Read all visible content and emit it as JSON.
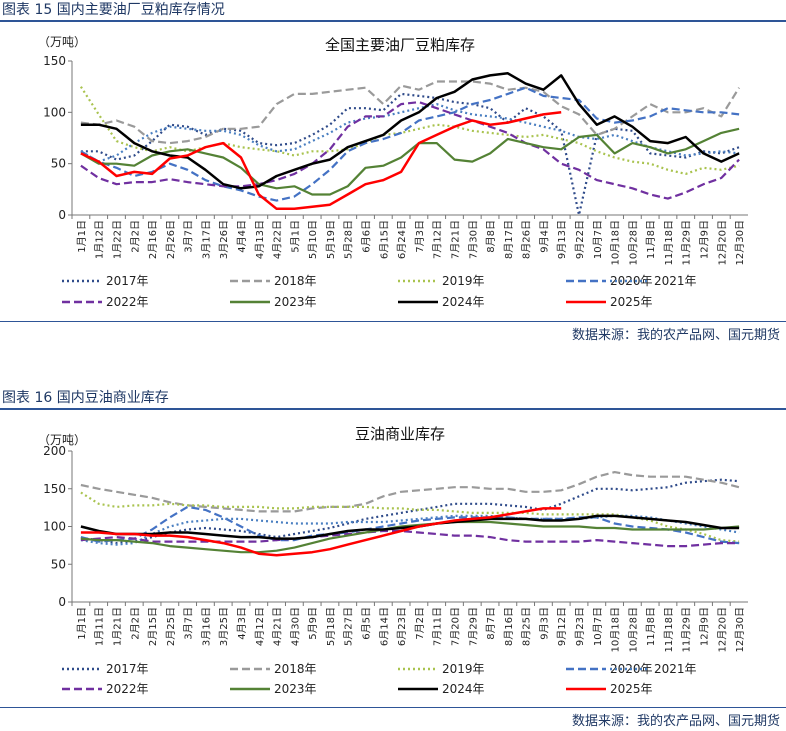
{
  "figures": [
    {
      "caption": "图表 15 国内主要油厂豆粕库存情况",
      "source": "数据来源：我的农产品网、国元期货"
    },
    {
      "caption": "图表 16 国内豆油商业库存",
      "source": "数据来源：我的农产品网、国元期货"
    }
  ],
  "series_styles": [
    {
      "name": "2017年",
      "color": "#2f4b8a",
      "dash": "2,3"
    },
    {
      "name": "2018年",
      "color": "#9a9a9a",
      "dash": "8,4"
    },
    {
      "name": "2019年",
      "color": "#a9c34f",
      "dash": "2,3"
    },
    {
      "name": "2020年",
      "color": "#4472c4",
      "dash": "8,4"
    },
    {
      "name": "2021年",
      "color": "#4a7fc1",
      "dash": "2,3"
    },
    {
      "name": "2022年",
      "color": "#7030a0",
      "dash": "8,4"
    },
    {
      "name": "2023年",
      "color": "#548235",
      "dash": ""
    },
    {
      "name": "2024年",
      "color": "#000000",
      "dash": ""
    },
    {
      "name": "2025年",
      "color": "#ff0000",
      "dash": ""
    }
  ],
  "chart_data": [
    {
      "type": "line",
      "title": "全国主要油厂豆粕库存",
      "unit": "（万吨）",
      "ylim": [
        0,
        150
      ],
      "yticks": [
        0,
        50,
        100,
        150
      ],
      "x": [
        "1月1日",
        "1月12日",
        "1月22日",
        "2月2日",
        "2月16日",
        "2月26日",
        "3月7日",
        "3月17日",
        "3月26日",
        "4月4日",
        "4月13日",
        "4月22日",
        "5月1日",
        "5月10日",
        "5月19日",
        "5月28日",
        "6月6日",
        "6月15日",
        "6月24日",
        "7月3日",
        "7月12日",
        "7月21日",
        "7月30日",
        "8月8日",
        "8月17日",
        "8月26日",
        "9月4日",
        "9月13日",
        "9月22日",
        "10月7日",
        "10月18日",
        "10月28日",
        "11月8日",
        "11月18日",
        "11月29日",
        "12月9日",
        "12月20日",
        "12月30日"
      ],
      "series": [
        {
          "name": "2017年",
          "values": [
            62,
            62,
            54,
            58,
            72,
            88,
            86,
            78,
            84,
            82,
            70,
            68,
            70,
            78,
            88,
            104,
            104,
            102,
            118,
            116,
            114,
            110,
            108,
            104,
            90,
            104,
            96,
            82,
            0,
            78,
            84,
            82,
            60,
            58,
            56,
            62,
            60,
            66
          ]
        },
        {
          "name": "2018年",
          "values": [
            90,
            88,
            92,
            86,
            72,
            70,
            72,
            76,
            84,
            84,
            86,
            108,
            118,
            118,
            120,
            122,
            124,
            108,
            126,
            122,
            130,
            130,
            130,
            128,
            122,
            124,
            120,
            106,
            98,
            78,
            84,
            96,
            108,
            100,
            100,
            104,
            96,
            124
          ]
        },
        {
          "name": "2019年",
          "values": [
            125,
            98,
            72,
            66,
            62,
            66,
            62,
            66,
            70,
            66,
            64,
            62,
            58,
            62,
            62,
            64,
            70,
            78,
            80,
            84,
            88,
            86,
            82,
            80,
            78,
            76,
            78,
            74,
            70,
            62,
            56,
            52,
            50,
            44,
            40,
            46,
            44,
            48
          ]
        },
        {
          "name": "2020年",
          "values": [
            62,
            52,
            46,
            38,
            42,
            50,
            44,
            34,
            28,
            24,
            18,
            14,
            18,
            30,
            44,
            62,
            70,
            74,
            80,
            92,
            96,
            100,
            108,
            112,
            118,
            124,
            116,
            114,
            112,
            94,
            90,
            92,
            96,
            104,
            102,
            100,
            100,
            98
          ]
        },
        {
          "name": "2021年",
          "values": [
            62,
            52,
            58,
            70,
            80,
            86,
            84,
            82,
            82,
            78,
            68,
            62,
            64,
            72,
            80,
            90,
            94,
            96,
            100,
            104,
            108,
            102,
            98,
            96,
            94,
            90,
            86,
            82,
            76,
            74,
            78,
            72,
            66,
            62,
            58,
            60,
            62,
            60
          ]
        },
        {
          "name": "2022年",
          "values": [
            48,
            36,
            30,
            32,
            32,
            35,
            32,
            30,
            28,
            28,
            30,
            34,
            40,
            50,
            64,
            86,
            96,
            96,
            108,
            110,
            104,
            98,
            92,
            86,
            80,
            70,
            64,
            50,
            44,
            34,
            30,
            26,
            20,
            16,
            22,
            30,
            36,
            54
          ]
        },
        {
          "name": "2023年",
          "values": [
            60,
            50,
            50,
            48,
            58,
            62,
            64,
            60,
            56,
            46,
            30,
            26,
            28,
            20,
            20,
            28,
            46,
            48,
            56,
            70,
            70,
            54,
            52,
            60,
            74,
            70,
            66,
            64,
            76,
            78,
            60,
            70,
            66,
            60,
            64,
            72,
            80,
            84
          ]
        },
        {
          "name": "2024年",
          "values": [
            88,
            88,
            84,
            70,
            62,
            58,
            56,
            44,
            30,
            26,
            28,
            38,
            44,
            50,
            54,
            66,
            72,
            78,
            92,
            100,
            114,
            120,
            132,
            136,
            138,
            128,
            122,
            136,
            108,
            88,
            96,
            86,
            72,
            70,
            76,
            60,
            52,
            60
          ]
        },
        {
          "name": "2025年",
          "values": [
            60,
            52,
            38,
            42,
            40,
            55,
            58,
            66,
            70,
            56,
            20,
            6,
            6,
            8,
            10,
            20,
            30,
            34,
            42,
            70,
            78,
            86,
            92,
            88,
            90,
            94,
            98,
            100,
            null,
            null,
            null,
            null,
            null,
            null,
            null,
            null,
            null,
            null
          ]
        }
      ]
    },
    {
      "type": "line",
      "title": "豆油商业库存",
      "unit": "（万吨）",
      "ylim": [
        0,
        200
      ],
      "yticks": [
        0,
        50,
        100,
        150,
        200
      ],
      "x": [
        "1月1日",
        "1月11日",
        "1月21日",
        "2月2日",
        "2月15日",
        "2月25日",
        "3月7日",
        "3月16日",
        "3月25日",
        "4月3日",
        "4月12日",
        "4月21日",
        "4月30日",
        "5月9日",
        "5月18日",
        "5月27日",
        "6月5日",
        "6月14日",
        "6月23日",
        "7月2日",
        "7月11日",
        "7月20日",
        "7月29日",
        "8月7日",
        "8月16日",
        "8月25日",
        "9月3日",
        "9月12日",
        "9月23日",
        "10月7日",
        "10月18日",
        "10月28日",
        "11月8日",
        "11月18日",
        "11月29日",
        "12月9日",
        "12月20日",
        "12月30日"
      ],
      "series": [
        {
          "name": "2017年",
          "values": [
            85,
            82,
            78,
            80,
            86,
            92,
            96,
            98,
            96,
            94,
            90,
            86,
            90,
            94,
            98,
            104,
            110,
            114,
            118,
            122,
            126,
            130,
            130,
            130,
            128,
            126,
            122,
            130,
            140,
            150,
            150,
            148,
            150,
            152,
            158,
            160,
            162,
            160
          ]
        },
        {
          "name": "2018年",
          "values": [
            155,
            150,
            146,
            142,
            138,
            132,
            128,
            126,
            124,
            122,
            120,
            120,
            120,
            124,
            126,
            126,
            130,
            140,
            146,
            148,
            150,
            152,
            152,
            150,
            150,
            146,
            146,
            148,
            156,
            166,
            172,
            168,
            166,
            166,
            166,
            162,
            158,
            152
          ]
        },
        {
          "name": "2019年",
          "values": [
            145,
            130,
            126,
            128,
            128,
            130,
            128,
            128,
            126,
            126,
            126,
            124,
            124,
            126,
            126,
            126,
            126,
            124,
            124,
            122,
            122,
            120,
            118,
            118,
            118,
            118,
            116,
            116,
            116,
            116,
            116,
            112,
            108,
            100,
            96,
            90,
            82,
            80
          ]
        },
        {
          "name": "2020年",
          "values": [
            86,
            80,
            82,
            84,
            96,
            112,
            126,
            122,
            112,
            100,
            88,
            82,
            82,
            88,
            90,
            92,
            96,
            100,
            104,
            108,
            110,
            112,
            112,
            112,
            112,
            110,
            110,
            110,
            112,
            112,
            104,
            100,
            98,
            96,
            92,
            86,
            80,
            78
          ]
        },
        {
          "name": "2021年",
          "values": [
            82,
            78,
            76,
            78,
            90,
            100,
            106,
            108,
            110,
            110,
            108,
            106,
            104,
            104,
            104,
            106,
            106,
            106,
            108,
            110,
            112,
            114,
            114,
            114,
            112,
            110,
            110,
            110,
            110,
            112,
            114,
            114,
            112,
            108,
            104,
            100,
            96,
            92
          ]
        },
        {
          "name": "2022年",
          "values": [
            82,
            84,
            86,
            84,
            80,
            80,
            80,
            80,
            80,
            80,
            80,
            82,
            84,
            86,
            88,
            90,
            92,
            94,
            94,
            92,
            90,
            88,
            88,
            86,
            82,
            80,
            80,
            80,
            80,
            82,
            80,
            78,
            76,
            74,
            74,
            76,
            78,
            78
          ]
        },
        {
          "name": "2023年",
          "values": [
            84,
            82,
            82,
            80,
            78,
            74,
            72,
            70,
            68,
            66,
            66,
            68,
            72,
            78,
            84,
            88,
            92,
            96,
            100,
            102,
            104,
            106,
            106,
            106,
            104,
            102,
            100,
            100,
            100,
            98,
            98,
            96,
            96,
            96,
            96,
            96,
            98,
            100
          ]
        },
        {
          "name": "2024年",
          "values": [
            100,
            94,
            90,
            90,
            90,
            92,
            92,
            90,
            88,
            86,
            86,
            84,
            84,
            86,
            90,
            94,
            96,
            96,
            98,
            100,
            104,
            106,
            108,
            110,
            110,
            110,
            108,
            108,
            110,
            114,
            114,
            112,
            110,
            108,
            106,
            102,
            98,
            98
          ]
        },
        {
          "name": "2025年",
          "values": [
            92,
            92,
            90,
            90,
            88,
            88,
            86,
            82,
            78,
            72,
            64,
            62,
            64,
            66,
            70,
            76,
            82,
            88,
            94,
            100,
            104,
            108,
            110,
            112,
            116,
            120,
            124,
            124,
            null,
            null,
            null,
            null,
            null,
            null,
            null,
            null,
            null,
            null
          ]
        }
      ]
    }
  ]
}
